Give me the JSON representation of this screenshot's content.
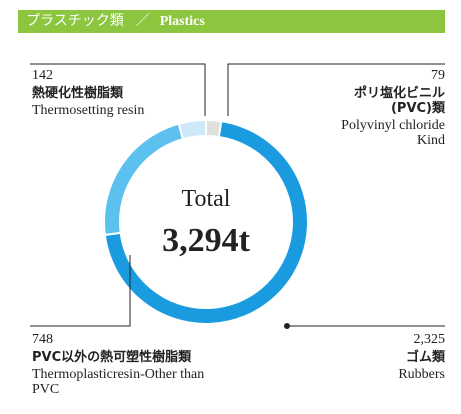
{
  "chart_data": {
    "type": "pie",
    "title": "プラスチック類",
    "separator": "／",
    "subtitle": "Plastics",
    "center_label": "Total",
    "total": {
      "value": 3294,
      "label": "3,294t"
    },
    "categories": [
      "ポリ塩化ビニル(PVC)類",
      "ゴム類",
      "PVC以外の熱可塑性樹脂類",
      "熱硬化性樹脂類"
    ],
    "english": [
      "Polyvinyl chloride Kind",
      "Rubbers",
      "Thermoplasticresin-Other than PVC",
      "Thermosetting resin"
    ],
    "values": [
      79,
      2325,
      748,
      142
    ],
    "value_labels": [
      "79",
      "2,325",
      "748",
      "142"
    ],
    "colors": [
      "#e0e0e0",
      "#1a9be0",
      "#5cc1ef",
      "#cde9f8"
    ]
  }
}
